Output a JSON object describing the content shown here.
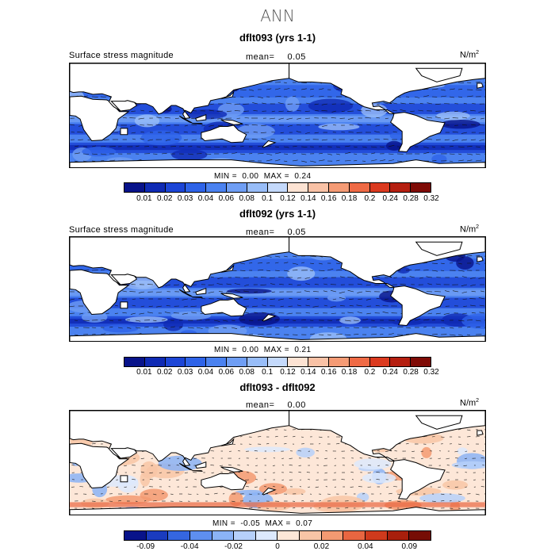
{
  "title": "ANN",
  "panels": [
    {
      "id": "top",
      "title": "dflt093 (yrs 1-1)",
      "field_label": "Surface stress magnitude",
      "mean_label": "mean=",
      "mean_value": "0.05",
      "units": "N/m",
      "units_sup": "2",
      "min_label": "MIN =",
      "min_value": "0.00",
      "max_label": "MAX =",
      "max_value": "0.24",
      "colorbar_labels": [
        "0.01",
        "0.02",
        "0.03",
        "0.04",
        "0.06",
        "0.08",
        "0.1",
        "0.12",
        "0.14",
        "0.16",
        "0.18",
        "0.2",
        "0.24",
        "0.28",
        "0.32"
      ]
    },
    {
      "id": "mid",
      "title": "dflt092 (yrs 1-1)",
      "field_label": "Surface stress magnitude",
      "mean_label": "mean=",
      "mean_value": "0.05",
      "units": "N/m",
      "units_sup": "2",
      "min_label": "MIN =",
      "min_value": "0.00",
      "max_label": "MAX =",
      "max_value": "0.21",
      "colorbar_labels": [
        "0.01",
        "0.02",
        "0.03",
        "0.04",
        "0.06",
        "0.08",
        "0.1",
        "0.12",
        "0.14",
        "0.16",
        "0.18",
        "0.2",
        "0.24",
        "0.28",
        "0.32"
      ]
    },
    {
      "id": "diff",
      "title": "dflt093 - dflt092",
      "field_label": "Surface stress magnitude",
      "mean_label": "mean=",
      "mean_value": "0.00",
      "units": "N/m",
      "units_sup": "2",
      "min_label": "MIN =",
      "min_value": "-0.05",
      "max_label": "MAX =",
      "max_value": "0.07",
      "colorbar_labels": [
        "-0.09",
        "-0.04",
        "-0.02",
        "0",
        "0.02",
        "0.04",
        "0.09"
      ]
    }
  ],
  "colors": {
    "abs_scale": [
      "#08138a",
      "#0f2ab4",
      "#1c45d6",
      "#2e63e8",
      "#4b82f0",
      "#6f9ef4",
      "#98bdf8",
      "#c4d9fb",
      "#fde3d3",
      "#f9c2a6",
      "#f59b75",
      "#ef6a45",
      "#db3a1f",
      "#b51f10",
      "#7f0b06"
    ],
    "diff_scale": [
      "#08138a",
      "#1a3bbf",
      "#3566e0",
      "#5e8ff0",
      "#8bb3f6",
      "#b6d0fa",
      "#dde9fd",
      "#fde7d8",
      "#f8c5a6",
      "#f39a72",
      "#e86641",
      "#cf3a1c",
      "#a81f0c",
      "#760d05"
    ],
    "land": "#ffffff",
    "coast": "#000000",
    "vector": "#111111"
  }
}
